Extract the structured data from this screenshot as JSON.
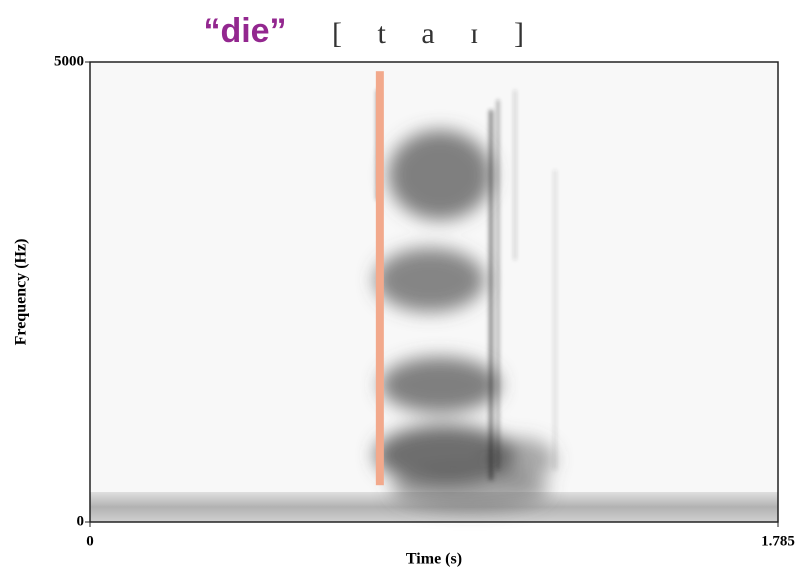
{
  "chart_data": {
    "type": "spectrogram",
    "title": "“die”",
    "transcription": "[ t a ɪ ]",
    "xlabel": "Time (s)",
    "ylabel": "Frequency (Hz)",
    "xlim": [
      0,
      1.785
    ],
    "ylim": [
      0,
      5000
    ],
    "xticks": [
      0,
      1.785
    ],
    "yticks": [
      0,
      5000
    ],
    "title_color": "#93278f",
    "marker": {
      "x": 0.752,
      "ymin": 400,
      "ymax": 4900,
      "color": "#f2a98c"
    }
  }
}
